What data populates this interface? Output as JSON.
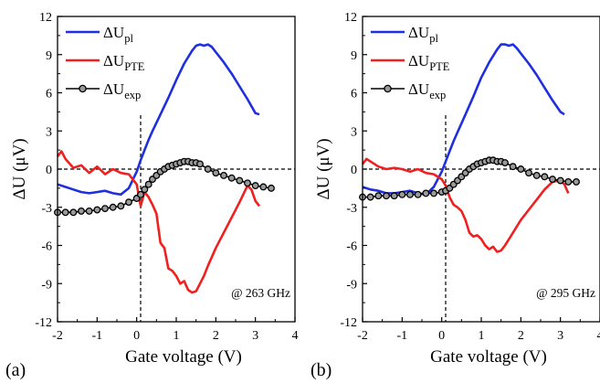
{
  "chart_data": [
    {
      "type": "line",
      "panel_label": "(a)",
      "annotation": "@ 263 GHz",
      "xlabel": "Gate voltage (V)",
      "ylabel": "ΔU (μV)",
      "xlim": [
        -2,
        4
      ],
      "ylim": [
        -12,
        12
      ],
      "xticks": [
        "-2",
        "-1",
        "0",
        "1",
        "2",
        "3",
        "4"
      ],
      "yticks": [
        "-12",
        "-9",
        "-6",
        "-3",
        "0",
        "3",
        "6",
        "9",
        "12"
      ],
      "reference_lines": {
        "y": 0,
        "x": 0.1
      },
      "legend_position": "top-left",
      "series": [
        {
          "name": "ΔU",
          "sub": "pl",
          "color": "#1f2fe0",
          "marker": "none",
          "x": [
            -2.0,
            -1.8,
            -1.6,
            -1.4,
            -1.2,
            -1.0,
            -0.8,
            -0.6,
            -0.4,
            -0.2,
            0.0,
            0.1,
            0.2,
            0.3,
            0.4,
            0.6,
            0.8,
            1.0,
            1.2,
            1.4,
            1.5,
            1.6,
            1.7,
            1.8,
            1.9,
            2.0,
            2.2,
            2.4,
            2.6,
            2.8,
            3.0,
            3.1
          ],
          "y": [
            -1.2,
            -1.4,
            -1.6,
            -1.8,
            -1.9,
            -1.8,
            -1.7,
            -1.9,
            -2.0,
            -1.5,
            -0.2,
            0.7,
            1.5,
            2.3,
            3.0,
            4.3,
            5.6,
            7.0,
            8.3,
            9.3,
            9.7,
            9.8,
            9.7,
            9.8,
            9.6,
            9.2,
            8.4,
            7.5,
            6.5,
            5.5,
            4.4,
            4.3
          ]
        },
        {
          "name": "ΔU",
          "sub": "PTE",
          "color": "#f02020",
          "marker": "none",
          "x": [
            -2.0,
            -1.9,
            -1.8,
            -1.6,
            -1.4,
            -1.2,
            -1.0,
            -0.8,
            -0.6,
            -0.4,
            -0.2,
            0.0,
            0.1,
            0.2,
            0.3,
            0.4,
            0.5,
            0.6,
            0.7,
            0.8,
            0.9,
            1.0,
            1.1,
            1.2,
            1.3,
            1.4,
            1.5,
            1.6,
            1.7,
            1.8,
            2.0,
            2.2,
            2.4,
            2.6,
            2.8,
            2.9,
            3.0,
            3.1
          ],
          "y": [
            1.0,
            1.4,
            0.8,
            0.1,
            0.3,
            -0.3,
            0.2,
            -0.4,
            0.0,
            -0.3,
            -0.4,
            -1.2,
            -2.9,
            -1.8,
            -2.2,
            -2.8,
            -3.5,
            -5.8,
            -6.2,
            -7.8,
            -8.0,
            -8.4,
            -9.0,
            -8.8,
            -9.5,
            -9.7,
            -9.6,
            -9.0,
            -8.4,
            -7.6,
            -6.2,
            -5.0,
            -3.8,
            -2.6,
            -1.3,
            -1.6,
            -2.5,
            -2.9
          ]
        },
        {
          "name": "ΔU",
          "sub": "exp",
          "color": "#000000",
          "marker": "circle",
          "x": [
            -2.0,
            -1.8,
            -1.6,
            -1.4,
            -1.2,
            -1.0,
            -0.8,
            -0.6,
            -0.4,
            -0.2,
            0.0,
            0.1,
            0.2,
            0.3,
            0.4,
            0.5,
            0.6,
            0.7,
            0.8,
            0.9,
            1.0,
            1.1,
            1.2,
            1.3,
            1.4,
            1.5,
            1.6,
            1.8,
            2.0,
            2.2,
            2.4,
            2.6,
            2.8,
            3.0,
            3.2,
            3.4
          ],
          "y": [
            -3.4,
            -3.4,
            -3.4,
            -3.3,
            -3.3,
            -3.2,
            -3.1,
            -3.0,
            -2.9,
            -2.6,
            -2.3,
            -2.0,
            -1.6,
            -1.2,
            -0.8,
            -0.5,
            -0.2,
            0.0,
            0.2,
            0.3,
            0.4,
            0.5,
            0.6,
            0.6,
            0.5,
            0.5,
            0.4,
            0.0,
            -0.3,
            -0.5,
            -0.7,
            -0.9,
            -1.1,
            -1.3,
            -1.4,
            -1.5
          ]
        }
      ]
    },
    {
      "type": "line",
      "panel_label": "(b)",
      "annotation": "@ 295 GHz",
      "xlabel": "Gate voltage (V)",
      "ylabel": "ΔU (μV)",
      "xlim": [
        -2,
        4
      ],
      "ylim": [
        -12,
        12
      ],
      "xticks": [
        "-2",
        "-1",
        "0",
        "1",
        "2",
        "3",
        "4"
      ],
      "yticks": [
        "-12",
        "-9",
        "-6",
        "-3",
        "0",
        "3",
        "6",
        "9",
        "12"
      ],
      "reference_lines": {
        "y": 0,
        "x": 0.1
      },
      "legend_position": "top-left",
      "series": [
        {
          "name": "ΔU",
          "sub": "pl",
          "color": "#1f2fe0",
          "marker": "none",
          "x": [
            -2.0,
            -1.8,
            -1.6,
            -1.4,
            -1.2,
            -1.0,
            -0.8,
            -0.6,
            -0.4,
            -0.2,
            0.0,
            0.1,
            0.2,
            0.3,
            0.4,
            0.6,
            0.8,
            1.0,
            1.2,
            1.4,
            1.5,
            1.6,
            1.7,
            1.8,
            1.9,
            2.0,
            2.2,
            2.4,
            2.6,
            2.8,
            3.0,
            3.1
          ],
          "y": [
            -1.4,
            -1.6,
            -1.7,
            -1.9,
            -1.9,
            -1.8,
            -1.7,
            -1.9,
            -2.0,
            -1.4,
            -0.2,
            0.6,
            1.4,
            2.2,
            2.9,
            4.3,
            5.7,
            7.2,
            8.4,
            9.4,
            9.8,
            9.8,
            9.7,
            9.8,
            9.5,
            9.1,
            8.3,
            7.4,
            6.4,
            5.4,
            4.5,
            4.3
          ]
        },
        {
          "name": "ΔU",
          "sub": "PTE",
          "color": "#f02020",
          "marker": "none",
          "x": [
            -2.0,
            -1.9,
            -1.8,
            -1.6,
            -1.4,
            -1.2,
            -1.0,
            -0.8,
            -0.6,
            -0.4,
            -0.2,
            0.0,
            0.1,
            0.2,
            0.3,
            0.4,
            0.5,
            0.6,
            0.7,
            0.8,
            0.9,
            1.0,
            1.1,
            1.2,
            1.3,
            1.4,
            1.5,
            1.6,
            1.8,
            2.0,
            2.2,
            2.4,
            2.6,
            2.8,
            3.0,
            3.1,
            3.2
          ],
          "y": [
            0.4,
            0.8,
            0.6,
            0.2,
            0.0,
            0.1,
            0.0,
            -0.2,
            0.0,
            -0.3,
            -0.4,
            -0.8,
            -1.3,
            -2.2,
            -2.8,
            -3.0,
            -3.3,
            -4.0,
            -5.0,
            -5.3,
            -5.2,
            -5.5,
            -6.0,
            -6.3,
            -6.1,
            -6.5,
            -6.4,
            -6.0,
            -5.0,
            -4.0,
            -3.2,
            -2.4,
            -1.6,
            -1.0,
            -0.9,
            -1.2,
            -1.9
          ]
        },
        {
          "name": "ΔU",
          "sub": "exp",
          "color": "#000000",
          "marker": "circle",
          "x": [
            -2.0,
            -1.8,
            -1.6,
            -1.4,
            -1.2,
            -1.0,
            -0.8,
            -0.6,
            -0.4,
            -0.2,
            0.0,
            0.1,
            0.2,
            0.3,
            0.4,
            0.5,
            0.6,
            0.7,
            0.8,
            0.9,
            1.0,
            1.1,
            1.2,
            1.3,
            1.4,
            1.5,
            1.6,
            1.8,
            2.0,
            2.2,
            2.4,
            2.6,
            2.8,
            3.0,
            3.2,
            3.4
          ],
          "y": [
            -2.2,
            -2.2,
            -2.1,
            -2.1,
            -2.1,
            -2.0,
            -2.0,
            -2.0,
            -1.9,
            -1.9,
            -1.8,
            -1.7,
            -1.5,
            -1.2,
            -0.9,
            -0.6,
            -0.3,
            0.0,
            0.2,
            0.4,
            0.5,
            0.6,
            0.7,
            0.7,
            0.6,
            0.6,
            0.5,
            0.2,
            0.0,
            -0.3,
            -0.5,
            -0.6,
            -0.8,
            -0.9,
            -1.0,
            -1.0
          ]
        }
      ]
    }
  ]
}
